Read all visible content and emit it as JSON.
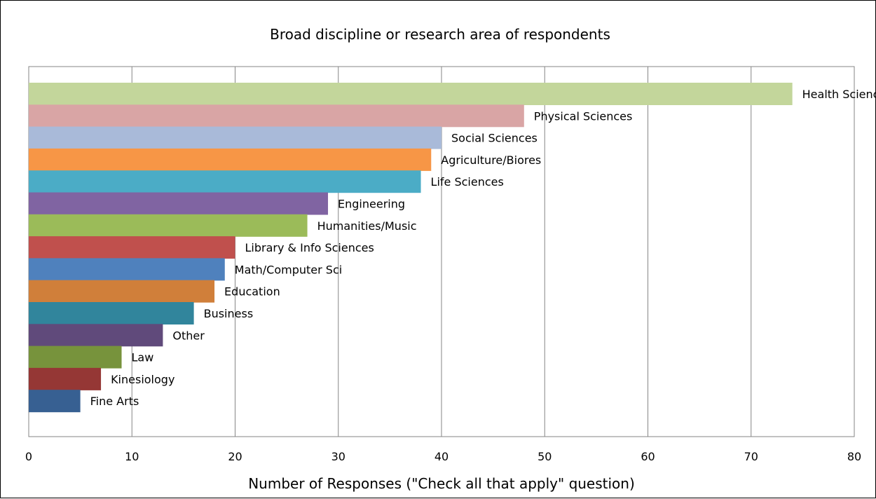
{
  "chart_data": {
    "type": "bar",
    "orientation": "horizontal",
    "title": "Broad discipline or research area of respondents",
    "xlabel": "Number of Responses (\"Check all that apply\" question)",
    "ylabel": "",
    "xlim": [
      0,
      80
    ],
    "x_ticks": [
      0,
      10,
      20,
      30,
      40,
      50,
      60,
      70,
      80
    ],
    "grid": "vertical major gridlines",
    "legend": "none",
    "categories": [
      "Health Sciences",
      "Physical Sciences",
      "Social Sciences",
      "Agriculture/Biores",
      "Life Sciences",
      "Engineering",
      "Humanities/Music",
      "Library & Info Sciences",
      "Math/Computer Sci",
      "Education",
      "Business",
      "Other",
      "Law",
      "Kinesiology",
      "Fine Arts"
    ],
    "values": [
      74,
      48,
      40,
      39,
      38,
      29,
      27,
      20,
      19,
      18,
      16,
      13,
      9,
      7,
      5
    ],
    "colors": [
      "#C3D69B",
      "#D9A5A5",
      "#A9BAD9",
      "#F79646",
      "#4BACC6",
      "#8064A2",
      "#9BBB59",
      "#C0504D",
      "#4F81BD",
      "#D07F3A",
      "#31859C",
      "#604A7B",
      "#77933C",
      "#953735",
      "#376092"
    ]
  }
}
